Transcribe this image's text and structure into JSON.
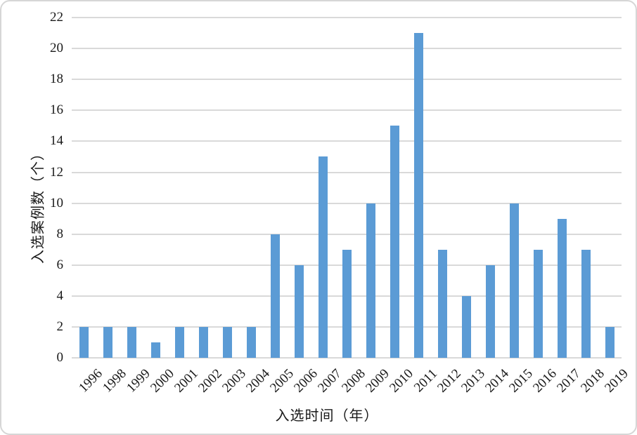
{
  "chart_data": {
    "type": "bar",
    "title": "",
    "xlabel": "入选时间（年）",
    "ylabel": "入选案例数（个）",
    "categories": [
      "1996",
      "1998",
      "1999",
      "2000",
      "2001",
      "2002",
      "2003",
      "2004",
      "2005",
      "2006",
      "2007",
      "2008",
      "2009",
      "2010",
      "2011",
      "2012",
      "2013",
      "2014",
      "2015",
      "2016",
      "2017",
      "2018",
      "2019"
    ],
    "values": [
      2,
      2,
      2,
      1,
      2,
      2,
      2,
      2,
      8,
      6,
      13,
      7,
      10,
      15,
      21,
      7,
      4,
      6,
      10,
      7,
      9,
      7,
      2
    ],
    "ylim": [
      0,
      22
    ],
    "ytick_step": 2,
    "grid": true,
    "legend": "none",
    "colors": {
      "bar": "#5B9BD5",
      "gridline": "#D9D9D9",
      "text": "#1a1a1a",
      "frame_border": "#D6D6D6",
      "background": "#FFFFFF"
    }
  }
}
